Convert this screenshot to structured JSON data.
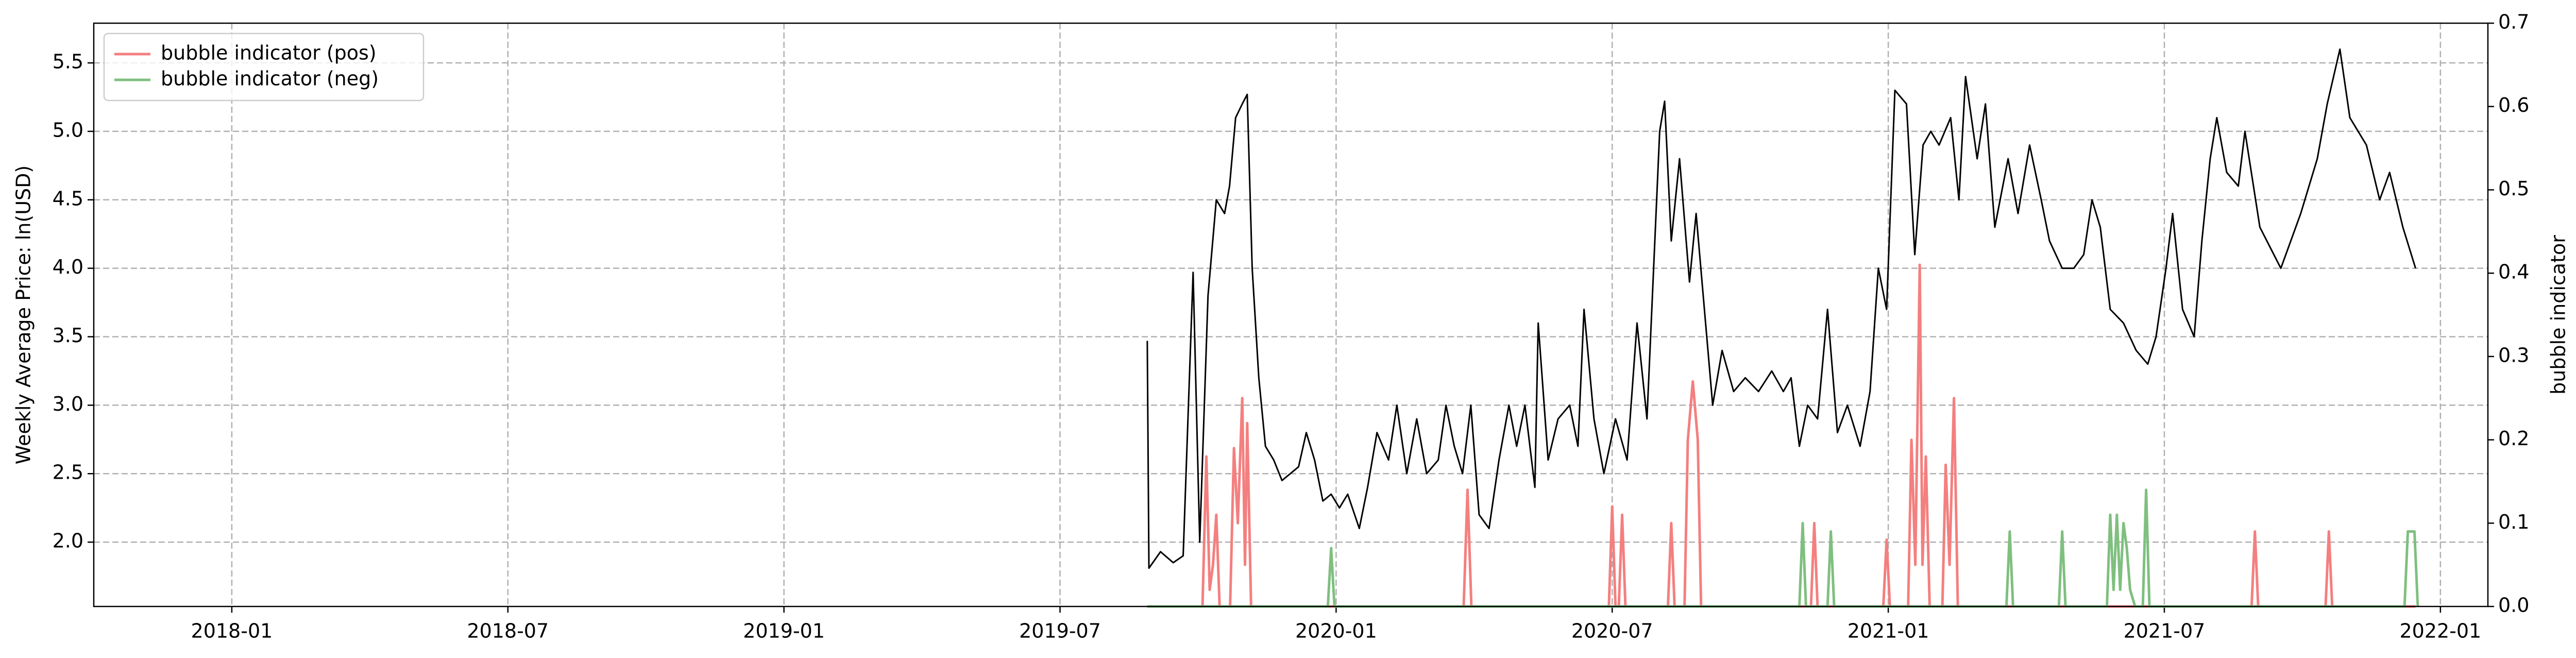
{
  "chart_data": {
    "type": "line",
    "ylabel": "Weekly Average Price: ln(USD)",
    "y2label": "bubble indicator",
    "xlim": [
      2017.75,
      2022.086
    ],
    "xticks": [
      {
        "value": 2018.0,
        "label": "2018-01"
      },
      {
        "value": 2018.5,
        "label": "2018-07"
      },
      {
        "value": 2019.0,
        "label": "2019-01"
      },
      {
        "value": 2019.5,
        "label": "2019-07"
      },
      {
        "value": 2020.0,
        "label": "2020-01"
      },
      {
        "value": 2020.5,
        "label": "2020-07"
      },
      {
        "value": 2021.0,
        "label": "2021-01"
      },
      {
        "value": 2021.5,
        "label": "2021-07"
      },
      {
        "value": 2022.0,
        "label": "2022-01"
      }
    ],
    "ylim": [
      1.53,
      5.79
    ],
    "yticks": [
      {
        "value": 2.0,
        "label": "2.0"
      },
      2.5,
      {
        "value": 3.0,
        "label": "3.0"
      },
      3.5,
      {
        "value": 4.0,
        "label": "4.0"
      },
      4.5,
      {
        "value": 5.0,
        "label": "5.0"
      },
      5.5
    ],
    "y2lim": [
      0,
      0.7
    ],
    "y2ticks": [
      {
        "value": 0,
        "label": "0.0"
      },
      0.1,
      0.2,
      0.3,
      0.4,
      0.5,
      0.6,
      0.7
    ],
    "grid": true,
    "legend": "upper left",
    "series": [
      {
        "color": "#000000",
        "x": [
          2019.658,
          2019.661,
          2019.682,
          2019.705,
          2019.723,
          2019.741,
          2019.753,
          2019.768,
          2019.783,
          2019.798,
          2019.807,
          2019.818,
          2019.83,
          2019.839,
          2019.848,
          2019.86,
          2019.872,
          2019.887,
          2019.902,
          2019.917,
          2019.932,
          2019.946,
          2019.961,
          2019.976,
          2019.991,
          2020.006,
          2020.021,
          2020.042,
          2020.057,
          2020.074,
          2020.095,
          2020.11,
          2020.128,
          2020.146,
          2020.164,
          2020.185,
          2020.199,
          2020.214,
          2020.229,
          2020.244,
          2020.259,
          2020.277,
          2020.295,
          2020.313,
          2020.327,
          2020.342,
          2020.36,
          2020.366,
          2020.384,
          2020.402,
          2020.423,
          2020.438,
          2020.449,
          2020.467,
          2020.485,
          2020.506,
          2020.527,
          2020.545,
          2020.563,
          2020.586,
          2020.595,
          2020.607,
          2020.622,
          2020.64,
          2020.652,
          2020.667,
          2020.682,
          2020.699,
          2020.72,
          2020.741,
          2020.765,
          2020.789,
          2020.81,
          2020.824,
          2020.839,
          2020.854,
          2020.872,
          2020.89,
          2020.908,
          2020.926,
          2020.949,
          2020.967,
          2020.982,
          2020.997,
          2021.012,
          2021.033,
          2021.048,
          2021.063,
          2021.077,
          2021.092,
          2021.113,
          2021.128,
          2021.14,
          2021.161,
          2021.176,
          2021.193,
          2021.217,
          2021.235,
          2021.256,
          2021.277,
          2021.292,
          2021.315,
          2021.336,
          2021.354,
          2021.369,
          2021.384,
          2021.402,
          2021.426,
          2021.449,
          2021.47,
          2021.485,
          2021.503,
          2021.515,
          2021.533,
          2021.554,
          2021.568,
          2021.583,
          2021.595,
          2021.613,
          2021.634,
          2021.646,
          2021.673,
          2021.711,
          2021.747,
          2021.777,
          2021.795,
          2021.818,
          2021.836,
          2021.866,
          2021.89,
          2021.908,
          2021.932,
          2021.955
        ],
        "values": [
          3.47,
          1.81,
          1.93,
          1.85,
          1.9,
          3.97,
          2.0,
          3.8,
          4.5,
          4.4,
          4.6,
          5.1,
          5.2,
          5.27,
          4.0,
          3.2,
          2.7,
          2.6,
          2.45,
          2.5,
          2.55,
          2.8,
          2.6,
          2.3,
          2.35,
          2.25,
          2.35,
          2.1,
          2.4,
          2.8,
          2.6,
          3.0,
          2.5,
          2.9,
          2.5,
          2.6,
          3.0,
          2.7,
          2.5,
          3.0,
          2.2,
          2.1,
          2.6,
          3.0,
          2.7,
          3.0,
          2.4,
          3.6,
          2.6,
          2.9,
          3.0,
          2.7,
          3.7,
          2.9,
          2.5,
          2.9,
          2.6,
          3.6,
          2.9,
          5.0,
          5.22,
          4.2,
          4.8,
          3.9,
          4.4,
          3.7,
          3.0,
          3.4,
          3.1,
          3.2,
          3.1,
          3.25,
          3.1,
          3.2,
          2.7,
          3.0,
          2.9,
          3.7,
          2.8,
          3.0,
          2.7,
          3.1,
          4.0,
          3.7,
          5.3,
          5.2,
          4.1,
          4.9,
          5.0,
          4.9,
          5.1,
          4.5,
          5.4,
          4.8,
          5.2,
          4.3,
          4.8,
          4.4,
          4.9,
          4.5,
          4.2,
          4.0,
          4.0,
          4.1,
          4.5,
          4.3,
          3.7,
          3.6,
          3.4,
          3.3,
          3.5,
          4.0,
          4.4,
          3.7,
          3.5,
          4.2,
          4.8,
          5.1,
          4.7,
          4.6,
          5.0,
          4.3,
          4.0,
          4.4,
          4.8,
          5.2,
          5.6,
          5.1,
          4.9,
          4.5,
          4.7,
          4.3,
          4.0
        ]
      },
      {
        "name": "bubble indicator (pos)",
        "color": "#f47f7f",
        "axis": "y2",
        "x": [
          2019.658,
          2019.758,
          2019.765,
          2019.771,
          2019.777,
          2019.783,
          2019.789,
          2019.808,
          2019.815,
          2019.822,
          2019.83,
          2019.835,
          2019.839,
          2019.846,
          2020.231,
          2020.238,
          2020.245,
          2020.494,
          2020.5,
          2020.506,
          2020.512,
          2020.518,
          2020.524,
          2020.601,
          2020.607,
          2020.613,
          2020.631,
          2020.637,
          2020.646,
          2020.655,
          2020.661,
          2020.86,
          2020.866,
          2020.872,
          2020.991,
          2020.997,
          2021.003,
          2021.036,
          2021.042,
          2021.049,
          2021.057,
          2021.062,
          2021.068,
          2021.075,
          2021.098,
          2021.104,
          2021.111,
          2021.119,
          2021.126,
          2021.658,
          2021.664,
          2021.67,
          2021.792,
          2021.798,
          2021.804,
          2021.955
        ],
        "values": [
          0,
          0,
          0.18,
          0.02,
          0.05,
          0.11,
          0,
          0,
          0.19,
          0.1,
          0.25,
          0.05,
          0.22,
          0,
          0,
          0.14,
          0,
          0,
          0.12,
          0,
          0,
          0.11,
          0,
          0,
          0.1,
          0,
          0,
          0.2,
          0.27,
          0.2,
          0,
          0,
          0.1,
          0,
          0,
          0.08,
          0,
          0,
          0.2,
          0.05,
          0.41,
          0.05,
          0.18,
          0,
          0,
          0.17,
          0.05,
          0.25,
          0,
          0,
          0.09,
          0,
          0,
          0.09,
          0,
          0
        ]
      },
      {
        "name": "bubble indicator (neg)",
        "color": "#7fbf7f",
        "axis": "y2",
        "x": [
          2019.658,
          2019.985,
          2019.991,
          2019.997,
          2020.839,
          2020.845,
          2020.851,
          2020.89,
          2020.896,
          2020.902,
          2021.214,
          2021.22,
          2021.226,
          2021.309,
          2021.315,
          2021.321,
          2021.396,
          2021.402,
          2021.408,
          2021.414,
          2021.42,
          2021.426,
          2021.432,
          2021.438,
          2021.447,
          2021.461,
          2021.467,
          2021.473,
          2021.935,
          2021.941,
          2021.947,
          2021.953,
          2021.959
        ],
        "values": [
          0,
          0,
          0.07,
          0,
          0,
          0.1,
          0,
          0,
          0.09,
          0,
          0,
          0.09,
          0,
          0,
          0.09,
          0,
          0,
          0.11,
          0.02,
          0.11,
          0.02,
          0.1,
          0.07,
          0.02,
          0,
          0,
          0.14,
          0,
          0,
          0.09,
          0.09,
          0.09,
          0
        ]
      }
    ]
  }
}
